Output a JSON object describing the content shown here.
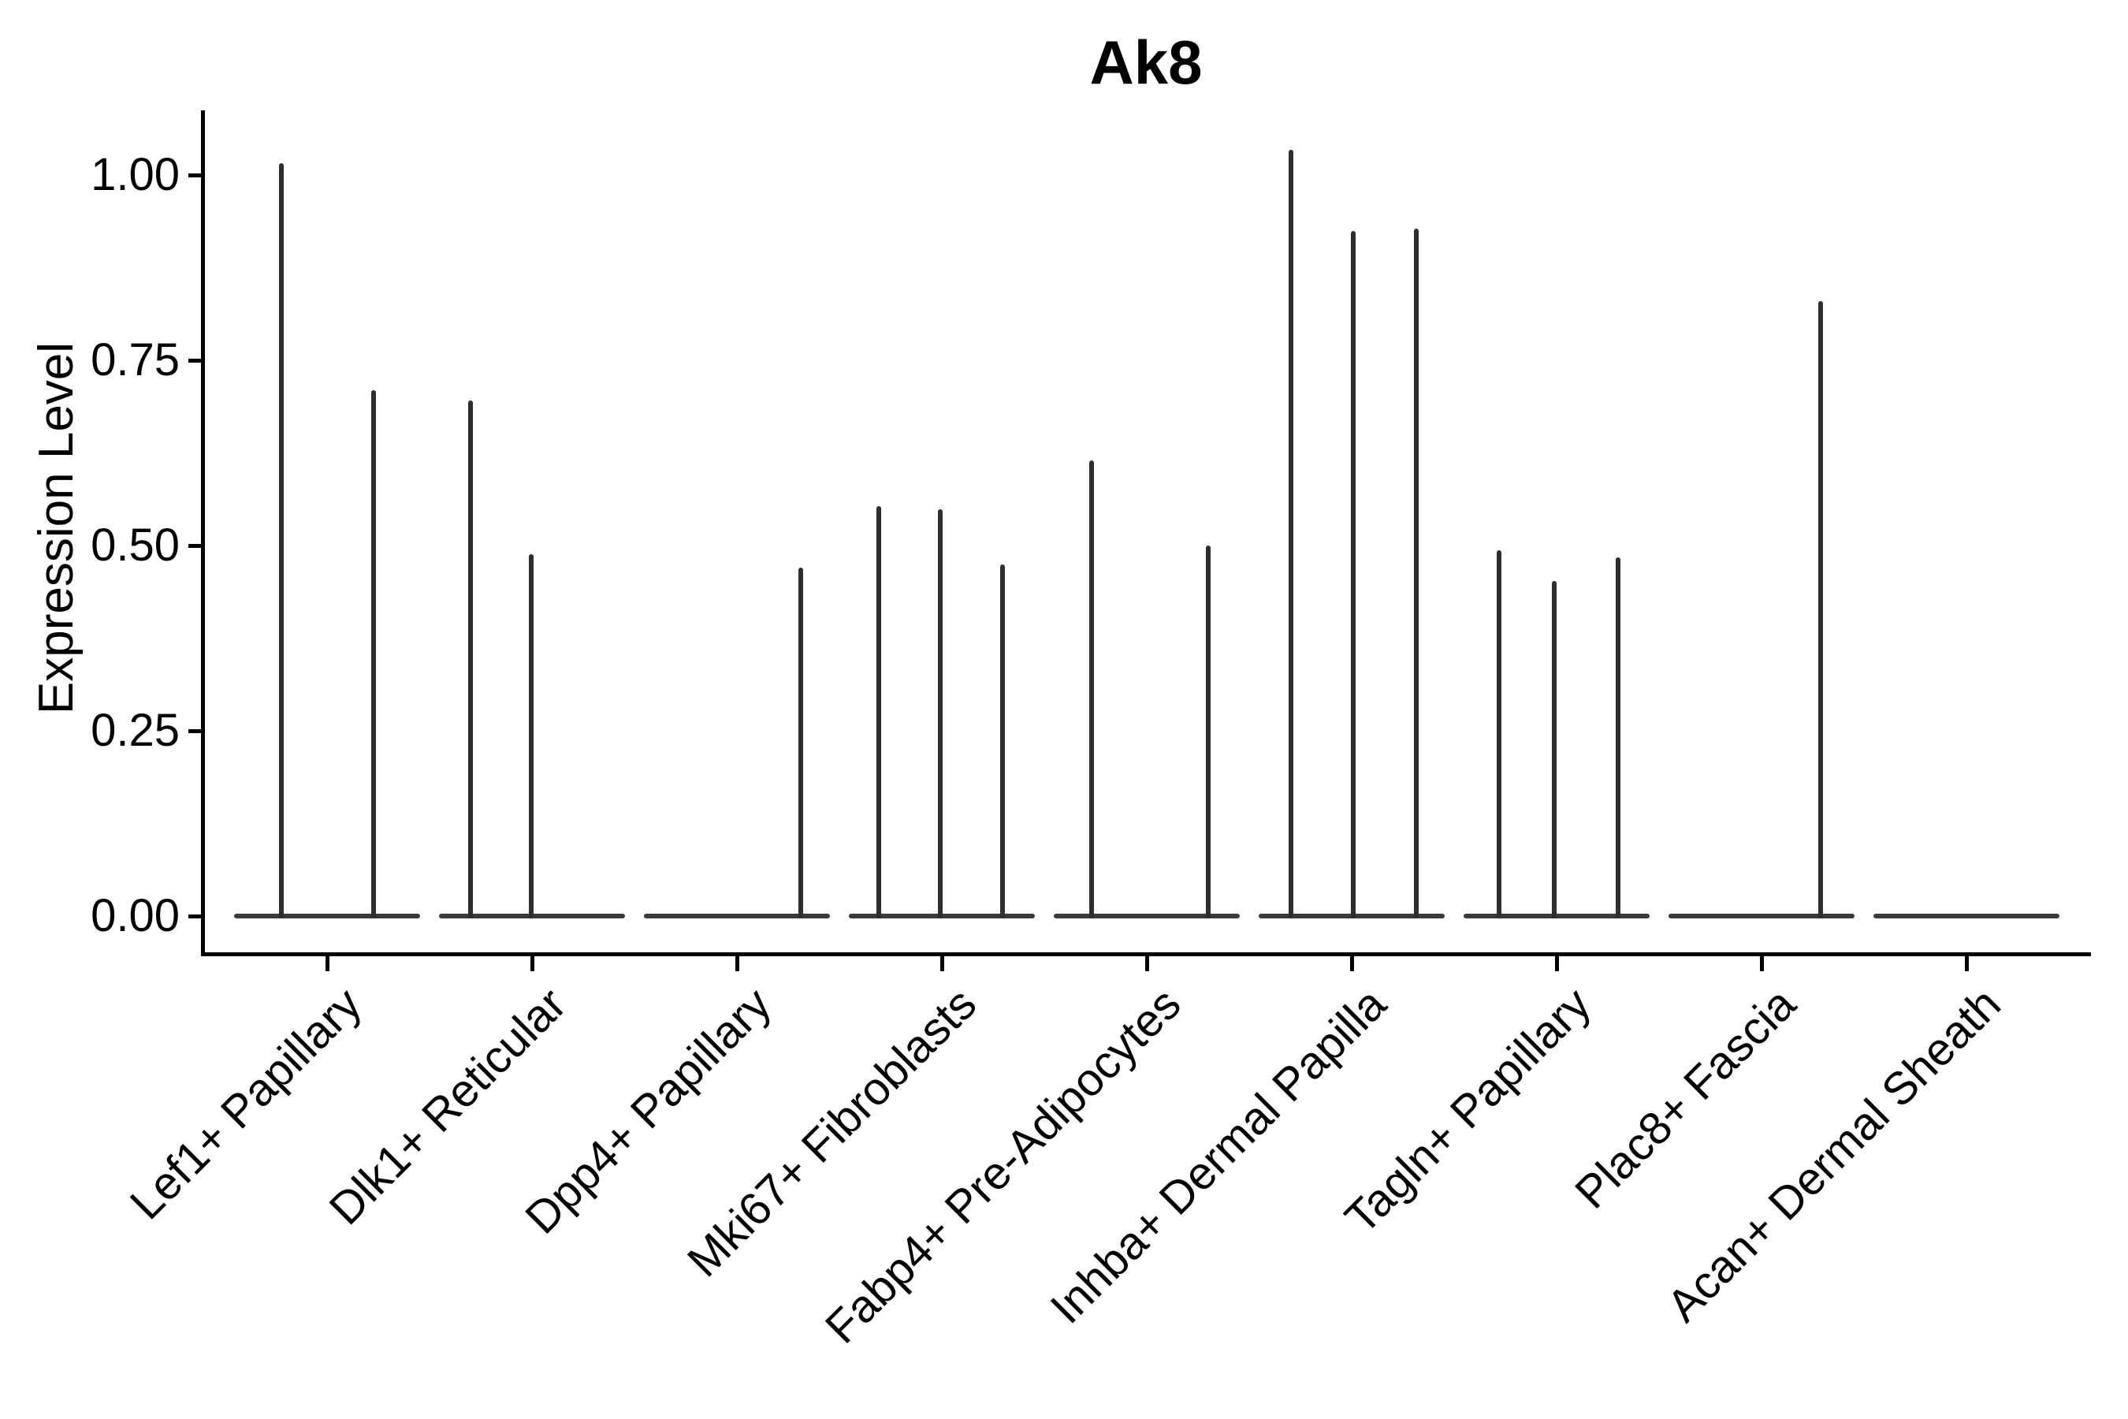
{
  "figure": {
    "title": "Ak8",
    "y_axis_label": "Expression Level"
  },
  "chart_data": {
    "type": "violin",
    "title": "Ak8",
    "xlabel": "",
    "ylabel": "Expression Level",
    "ylim": [
      0,
      1.09
    ],
    "yticks": [
      1.0,
      0.75,
      0.5,
      0.25,
      0.0
    ],
    "ytick_labels": [
      "1.00",
      "0.75",
      "0.50",
      "0.25",
      "0.00"
    ],
    "grid": false,
    "legend": "none",
    "line_color": "#2e2e2e",
    "axis_color": "#000000",
    "categories": [
      "Lef1+ Papillary",
      "Dlk1+ Reticular",
      "Dpp4+ Papillary",
      "Mki67+ Fibroblasts",
      "Fabp4+ Pre-Adipocytes",
      "Inhba+ Dermal Papilla",
      "Tagln+ Papillary",
      "Plac8+ Fascia",
      "Acan+ Dermal Sheath"
    ],
    "series": [
      {
        "category": "Lef1+ Papillary",
        "spikes": [
          {
            "dodge": -58,
            "value": 1.016
          },
          {
            "dodge": 59,
            "value": 0.71
          }
        ]
      },
      {
        "category": "Dlk1+ Reticular",
        "spikes": [
          {
            "dodge": -78,
            "value": 0.696
          },
          {
            "dodge": -1,
            "value": 0.488
          }
        ]
      },
      {
        "category": "Dpp4+ Papillary",
        "spikes": [
          {
            "dodge": 81,
            "value": 0.47
          }
        ]
      },
      {
        "category": "Mki67+ Fibroblasts",
        "spikes": [
          {
            "dodge": -80,
            "value": 0.553
          },
          {
            "dodge": -2,
            "value": 0.549
          },
          {
            "dodge": 77,
            "value": 0.475
          }
        ]
      },
      {
        "category": "Fabp4+ Pre-Adipocytes",
        "spikes": [
          {
            "dodge": -70,
            "value": 0.615
          },
          {
            "dodge": 78,
            "value": 0.5
          }
        ]
      },
      {
        "category": "Inhba+ Dermal Papilla",
        "spikes": [
          {
            "dodge": -77,
            "value": 1.034
          },
          {
            "dodge": 2,
            "value": 0.924
          },
          {
            "dodge": 82,
            "value": 0.928
          }
        ]
      },
      {
        "category": "Tagln+ Papillary",
        "spikes": [
          {
            "dodge": -73,
            "value": 0.494
          },
          {
            "dodge": -3,
            "value": 0.452
          },
          {
            "dodge": 78,
            "value": 0.484
          }
        ]
      },
      {
        "category": "Plac8+ Fascia",
        "spikes": [
          {
            "dodge": 75,
            "value": 0.83
          }
        ]
      },
      {
        "category": "Acan+ Dermal Sheath",
        "spikes": []
      }
    ]
  }
}
